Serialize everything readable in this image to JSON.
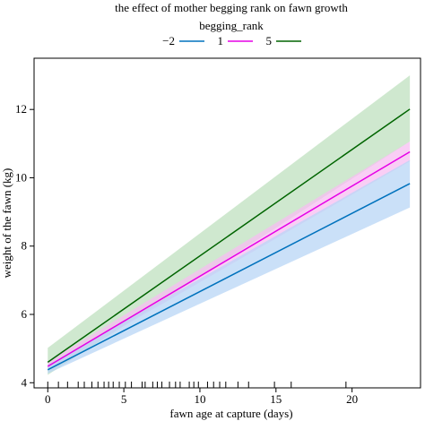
{
  "chart_data": {
    "type": "line",
    "title": "the effect of mother begging rank on fawn growth",
    "xlabel": "fawn age at capture (days)",
    "ylabel": "weight of the fawn (kg)",
    "legend": {
      "title": "begging_rank",
      "placement": "top"
    },
    "xlim": [
      -0.9,
      24.5
    ],
    "ylim": [
      3.85,
      13.5
    ],
    "x_ticks": [
      0,
      5,
      10,
      15,
      20
    ],
    "y_ticks": [
      4,
      6,
      8,
      10,
      12
    ],
    "grid": false,
    "series": [
      {
        "name": "−2",
        "color": "#0072bd",
        "band_color": "#b8d5f5",
        "line": [
          [
            0,
            4.38
          ],
          [
            23.8,
            9.83
          ]
        ],
        "lower": [
          [
            0,
            4.27
          ],
          [
            23.8,
            9.13
          ]
        ],
        "upper": [
          [
            0,
            4.52
          ],
          [
            23.8,
            10.52
          ]
        ]
      },
      {
        "name": "1",
        "color": "#e600e6",
        "band_color": "#f7bdf2",
        "line": [
          [
            0,
            4.48
          ],
          [
            23.8,
            10.76
          ]
        ],
        "lower": [
          [
            0,
            4.38
          ],
          [
            23.8,
            10.48
          ]
        ],
        "upper": [
          [
            0,
            4.62
          ],
          [
            23.8,
            11.06
          ]
        ]
      },
      {
        "name": "5",
        "color": "#006400",
        "band_color": "#bfe0bf",
        "line": [
          [
            0,
            4.6
          ],
          [
            23.8,
            12.01
          ]
        ],
        "lower": [
          [
            0,
            4.23
          ],
          [
            23.8,
            11.06
          ]
        ],
        "upper": [
          [
            0,
            5.02
          ],
          [
            23.8,
            13.0
          ]
        ]
      }
    ],
    "rug_x": [
      0,
      0.7,
      1.3,
      2,
      2.4,
      2.9,
      3.3,
      3.7,
      4,
      4.3,
      4.7,
      5.1,
      5.5,
      6.2,
      6.4,
      6.9,
      7.2,
      7.5,
      8,
      8.4,
      8.7,
      9.3,
      9.6,
      9.9,
      10.5,
      10.9,
      11.3,
      11.7,
      12.5,
      13.2,
      14.9,
      16,
      19.6
    ]
  }
}
